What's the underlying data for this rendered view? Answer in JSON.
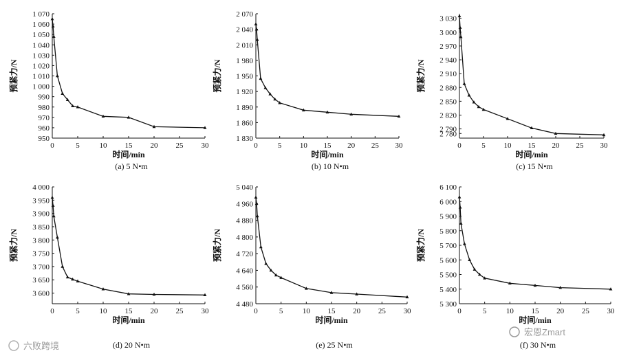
{
  "watermarks": {
    "left": "六败跨境",
    "right": "宏恩Zmart"
  },
  "chart_data": [
    {
      "type": "line",
      "caption": "(a) 5 N•m",
      "xlabel": "时间/min",
      "ylabel": "预紧力/N",
      "xlim": [
        0,
        30
      ],
      "ylim": [
        950,
        1070
      ],
      "xticks": [
        0,
        5,
        10,
        15,
        20,
        25,
        30
      ],
      "yticks": [
        "950",
        "960",
        "970",
        "980",
        "990",
        "1 000",
        "1 010",
        "1 020",
        "1 030",
        "1 040",
        "1 050",
        "1 060",
        "1 070"
      ],
      "ytick_values": [
        950,
        960,
        970,
        980,
        990,
        1000,
        1010,
        1020,
        1030,
        1040,
        1050,
        1060,
        1070
      ],
      "x": [
        0,
        0.15,
        0.3,
        1,
        2,
        3,
        4,
        5,
        10,
        15,
        20,
        30
      ],
      "y": [
        1065,
        1058,
        1048,
        1010,
        993,
        987,
        981,
        980,
        971,
        970,
        961,
        960
      ]
    },
    {
      "type": "line",
      "caption": "(b) 10 N•m",
      "xlabel": "时间/min",
      "ylabel": "预紧力/N",
      "xlim": [
        0,
        30
      ],
      "ylim": [
        1830,
        2070
      ],
      "xticks": [
        0,
        5,
        10,
        15,
        20,
        25,
        30
      ],
      "yticks": [
        "1 830",
        "1 860",
        "1 890",
        "1 920",
        "1 950",
        "1 980",
        "2 010",
        "2 040",
        "2 070"
      ],
      "ytick_values": [
        1830,
        1860,
        1890,
        1920,
        1950,
        1980,
        2010,
        2040,
        2070
      ],
      "x": [
        0,
        0.15,
        0.3,
        1,
        2,
        3,
        4,
        5,
        10,
        15,
        20,
        30
      ],
      "y": [
        2050,
        2040,
        2020,
        1945,
        1927,
        1915,
        1905,
        1898,
        1884,
        1880,
        1876,
        1872
      ]
    },
    {
      "type": "line",
      "caption": "(c) 15 N•m",
      "xlabel": "时间/min",
      "ylabel": "预紧力/N",
      "xlim": [
        0,
        30
      ],
      "ylim": [
        2770,
        3040
      ],
      "xticks": [
        0,
        5,
        10,
        15,
        20,
        25,
        30
      ],
      "yticks": [
        "2 780",
        "2 790",
        "2 820",
        "2 850",
        "2 880",
        "2 910",
        "2 940",
        "2 970",
        "3 000",
        "3 030"
      ],
      "ytick_values": [
        2780,
        2790,
        2820,
        2850,
        2880,
        2910,
        2940,
        2970,
        3000,
        3030
      ],
      "x": [
        0,
        0.15,
        0.3,
        1,
        2,
        3,
        4,
        5,
        10,
        15,
        20,
        30
      ],
      "y": [
        3035,
        3010,
        2990,
        2888,
        2863,
        2848,
        2838,
        2832,
        2812,
        2792,
        2780,
        2777
      ]
    },
    {
      "type": "line",
      "caption": "(d) 20 N•m",
      "xlabel": "时间/min",
      "ylabel": "预紧力/N",
      "xlim": [
        0,
        30
      ],
      "ylim": [
        3560,
        4000
      ],
      "xticks": [
        0,
        5,
        10,
        15,
        20,
        25,
        30
      ],
      "yticks": [
        "3 600",
        "3 650",
        "3 700",
        "3 750",
        "3 800",
        "3 850",
        "3 900",
        "3 950",
        "4 000"
      ],
      "ytick_values": [
        3600,
        3650,
        3700,
        3750,
        3800,
        3850,
        3900,
        3950,
        4000
      ],
      "x": [
        0,
        0.15,
        0.3,
        1,
        2,
        3,
        4,
        5,
        10,
        15,
        20,
        30
      ],
      "y": [
        3960,
        3930,
        3890,
        3810,
        3700,
        3660,
        3652,
        3645,
        3615,
        3597,
        3595,
        3593
      ]
    },
    {
      "type": "line",
      "caption": "(e) 25 N•m",
      "xlabel": "时间/min",
      "ylabel": "预紧力/N",
      "xlim": [
        0,
        30
      ],
      "ylim": [
        4480,
        5040
      ],
      "xticks": [
        0,
        5,
        10,
        15,
        20,
        25,
        30
      ],
      "yticks": [
        "4 480",
        "4 560",
        "4 640",
        "4 720",
        "4 800",
        "4 880",
        "4 960",
        "5 040"
      ],
      "ytick_values": [
        4480,
        4560,
        4640,
        4720,
        4800,
        4880,
        4960,
        5040
      ],
      "x": [
        0,
        0.15,
        0.3,
        1,
        2,
        3,
        4,
        5,
        10,
        15,
        20,
        30
      ],
      "y": [
        4990,
        4960,
        4900,
        4752,
        4672,
        4640,
        4617,
        4605,
        4553,
        4533,
        4526,
        4512
      ]
    },
    {
      "type": "line",
      "caption": "(f) 30 N•m",
      "xlabel": "时间/min",
      "ylabel": "预紧力/N",
      "xlim": [
        0,
        30
      ],
      "ylim": [
        5300,
        6100
      ],
      "xticks": [
        0,
        5,
        10,
        15,
        20,
        25,
        30
      ],
      "yticks": [
        "5 300",
        "5 400",
        "5 500",
        "5 600",
        "5 700",
        "5 800",
        "5 900",
        "6 000",
        "6 100"
      ],
      "ytick_values": [
        5300,
        5400,
        5500,
        5600,
        5700,
        5800,
        5900,
        6000,
        6100
      ],
      "x": [
        0,
        0.15,
        0.3,
        1,
        2,
        3,
        4,
        5,
        10,
        15,
        20,
        30
      ],
      "y": [
        6030,
        5960,
        5850,
        5710,
        5600,
        5535,
        5500,
        5475,
        5440,
        5425,
        5410,
        5400
      ]
    }
  ]
}
